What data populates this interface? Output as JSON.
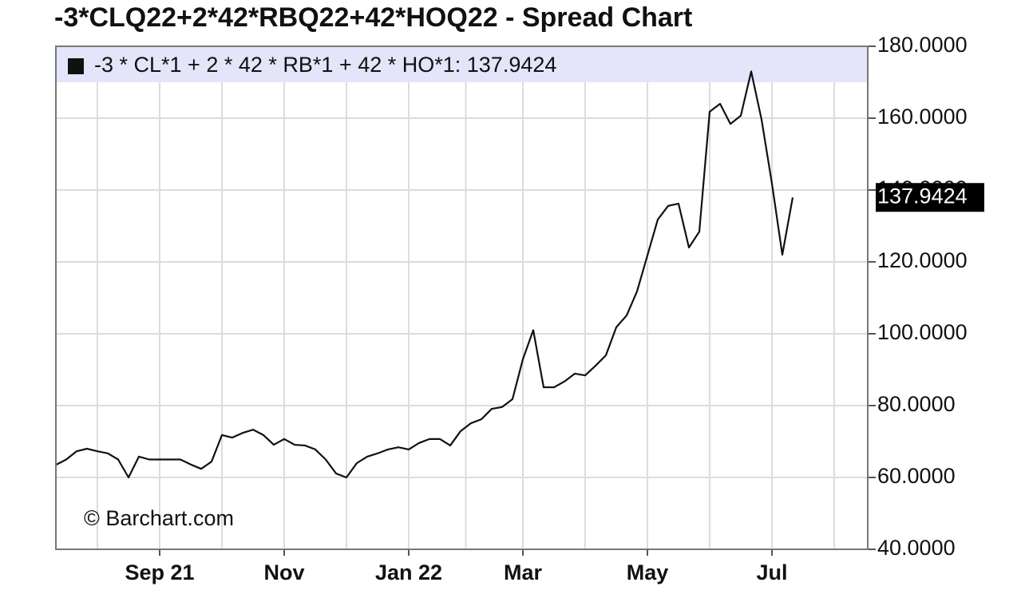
{
  "chart_data": {
    "type": "line",
    "title": "-3*CLQ22+2*42*RBQ22+42*HOQ22 - Spread Chart",
    "watermark": "© Barchart.com",
    "categories": [
      null,
      null,
      null,
      null,
      null,
      null,
      null,
      null,
      null,
      null,
      "Sep 21",
      null,
      null,
      null,
      null,
      null,
      null,
      null,
      null,
      null,
      null,
      null,
      "Nov",
      null,
      null,
      null,
      null,
      null,
      null,
      null,
      null,
      null,
      null,
      null,
      "Jan 22",
      null,
      null,
      null,
      null,
      null,
      null,
      null,
      null,
      null,
      null,
      "Mar",
      null,
      null,
      null,
      null,
      null,
      null,
      null,
      null,
      null,
      null,
      null,
      "May",
      null,
      null,
      null,
      null,
      null,
      null,
      null,
      null,
      null,
      null,
      null,
      "Jul",
      null,
      null
    ],
    "series": [
      {
        "name": "-3 * CL*1 + 2 * 42 * RB*1 + 42 * HO*1: 137.9424",
        "color": "#111111",
        "values": [
          63.5,
          65,
          67.3,
          68,
          67.3,
          66.7,
          65,
          60,
          65.8,
          65,
          65,
          65,
          65,
          63.6,
          62.4,
          64.4,
          71.8,
          71.1,
          72.4,
          73.3,
          71.8,
          69.1,
          70.7,
          69.1,
          68.9,
          67.8,
          65,
          61.1,
          60,
          64,
          65.8,
          66.7,
          67.8,
          68.4,
          67.8,
          69.6,
          70.7,
          70.7,
          68.9,
          72.9,
          75.1,
          76.2,
          79.1,
          79.6,
          81.8,
          92.9,
          101,
          85.1,
          85.1,
          86.7,
          88.9,
          88.4,
          91.1,
          94,
          101.8,
          105.1,
          111.8,
          121.8,
          131.8,
          135.6,
          136.2,
          124,
          128.4,
          161.8,
          164,
          158.4,
          160.7,
          173,
          159.6,
          141.8,
          122,
          137.9424
        ]
      }
    ],
    "ylim": [
      40,
      180
    ],
    "yticks": [
      {
        "value": 40,
        "label": "40.0000"
      },
      {
        "value": 60,
        "label": "60.0000"
      },
      {
        "value": 80,
        "label": "80.0000"
      },
      {
        "value": 100,
        "label": "100.0000"
      },
      {
        "value": 120,
        "label": "120.0000"
      },
      {
        "value": 140,
        "label": "140.0000"
      },
      {
        "value": 160,
        "label": "160.0000"
      },
      {
        "value": 180,
        "label": "180.0000"
      }
    ],
    "grid": true
  }
}
